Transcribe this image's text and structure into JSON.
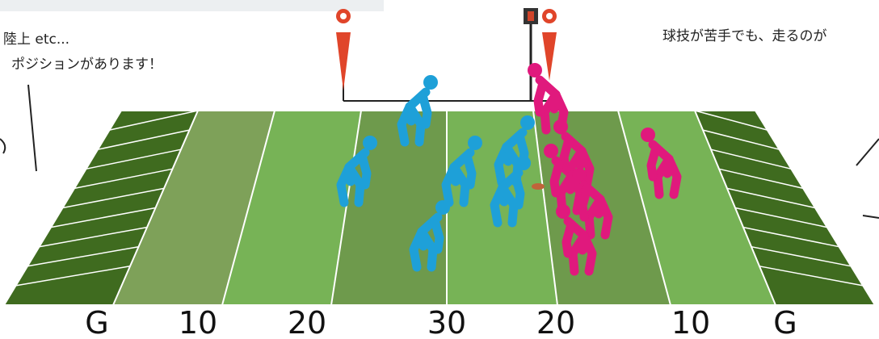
{
  "texts": {
    "note_left_1": "陸上 etc...",
    "note_left_2": "ポジションがあります！",
    "note_right": "球技が苦手でも、走るのが"
  },
  "yard_labels": [
    "G",
    "10",
    "20",
    "30",
    "20",
    "10",
    "G"
  ]
}
